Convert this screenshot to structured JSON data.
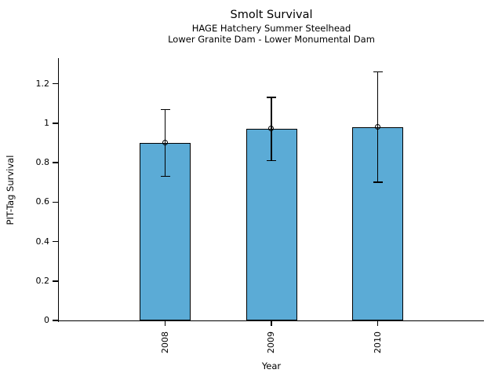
{
  "figure": {
    "background": "#ffffff"
  },
  "chart_data": {
    "type": "bar",
    "title": "Smolt Survival",
    "subtitle": [
      "HAGE Hatchery Summer Steelhead",
      "Lower Granite Dam - Lower Monumental Dam"
    ],
    "xlabel": "Year",
    "ylabel": "PIT-Tag Survival",
    "categories": [
      "2008",
      "2009",
      "2010"
    ],
    "values": [
      0.9,
      0.97,
      0.98
    ],
    "error_bars": {
      "upper": [
        1.07,
        1.13,
        1.26
      ],
      "lower": [
        0.73,
        0.81,
        0.7
      ]
    },
    "yticks": {
      "values": [
        0,
        0.2,
        0.4,
        0.6,
        0.8,
        1.0,
        1.2
      ],
      "labels": [
        "0",
        "0.2",
        "0.4",
        "0.6",
        "0.8",
        "1",
        "1.2"
      ]
    },
    "ylim": [
      0,
      1.33
    ],
    "grid": false,
    "legend": null,
    "bar_color": "#5BABD6",
    "bar_edge_color": "#000000",
    "error_color": "#000000",
    "marker": "open-circle",
    "marker_color": "#000000"
  }
}
